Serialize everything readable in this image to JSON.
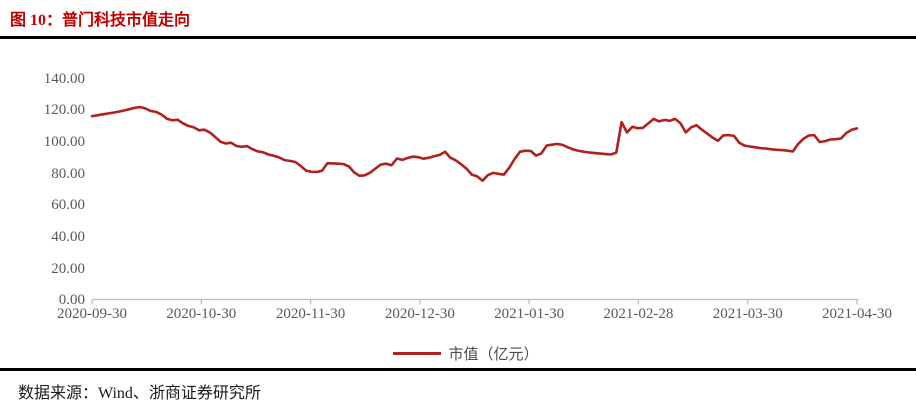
{
  "title": "图 10：普门科技市值走向",
  "footer": {
    "source_label": "数据来源：Wind、浙商证券研究所"
  },
  "colors": {
    "title_red": "#c00000",
    "line_red": "#b02020",
    "axis_gray": "#bfbfbf",
    "tick_text_gray": "#595959",
    "rule_black": "#000000"
  },
  "chart_data": {
    "type": "line",
    "title": "普门科技市值走向",
    "xlabel": "",
    "ylabel": "市值（亿元）",
    "ylim": [
      0,
      140
    ],
    "grid": false,
    "legend": {
      "label": "市值（亿元）",
      "position": "bottom-center"
    },
    "y_tick_labels": [
      "140.00",
      "120.00",
      "100.00",
      "80.00",
      "60.00",
      "40.00",
      "20.00",
      "0.00"
    ],
    "x_tick_labels": [
      "2020-09-30",
      "2020-10-30",
      "2020-11-30",
      "2020-12-30",
      "2021-01-30",
      "2021-02-28",
      "2021-03-30",
      "2021-04-30"
    ],
    "series": [
      {
        "name": "市值（亿元）",
        "color": "#b02020",
        "values": [
          116.6,
          117.1,
          117.7,
          118.2,
          118.8,
          119.4,
          120.1,
          120.9,
          121.8,
          122.3,
          121.4,
          119.8,
          119.2,
          117.6,
          114.9,
          113.9,
          114.3,
          112.0,
          110.4,
          109.5,
          107.6,
          108.0,
          106.3,
          103.5,
          100.5,
          99.3,
          99.8,
          97.7,
          97.2,
          97.6,
          95.7,
          94.3,
          93.7,
          92.3,
          91.5,
          90.4,
          88.8,
          88.3,
          87.6,
          85.2,
          82.2,
          81.4,
          81.3,
          82.1,
          86.8,
          86.7,
          86.5,
          86.3,
          84.8,
          81.0,
          78.9,
          79.2,
          80.9,
          83.5,
          86.0,
          86.5,
          85.5,
          89.8,
          88.9,
          90.1,
          91.0,
          90.6,
          89.7,
          90.3,
          91.3,
          92.1,
          94.0,
          90.3,
          88.6,
          86.2,
          83.4,
          79.6,
          78.5,
          75.8,
          79.3,
          80.7,
          80.1,
          79.6,
          84.0,
          89.5,
          94.0,
          94.7,
          94.6,
          91.6,
          93.0,
          98.0,
          98.5,
          99.0,
          98.3,
          96.8,
          95.5,
          94.6,
          94.0,
          93.6,
          93.2,
          92.9,
          92.6,
          92.3,
          93.5,
          112.8,
          106.2,
          109.8,
          108.9,
          109.2,
          112.0,
          114.8,
          113.2,
          114.2,
          113.6,
          114.8,
          112.0,
          106.3,
          109.5,
          110.8,
          108.0,
          105.5,
          103.0,
          101.0,
          104.4,
          104.6,
          104.1,
          99.8,
          97.9,
          97.4,
          96.9,
          96.3,
          96.1,
          95.6,
          95.3,
          95.1,
          94.7,
          94.2,
          99.0,
          102.3,
          104.3,
          104.6,
          100.2,
          100.8,
          101.8,
          102.0,
          102.4,
          105.9,
          107.9,
          108.8
        ]
      }
    ]
  }
}
